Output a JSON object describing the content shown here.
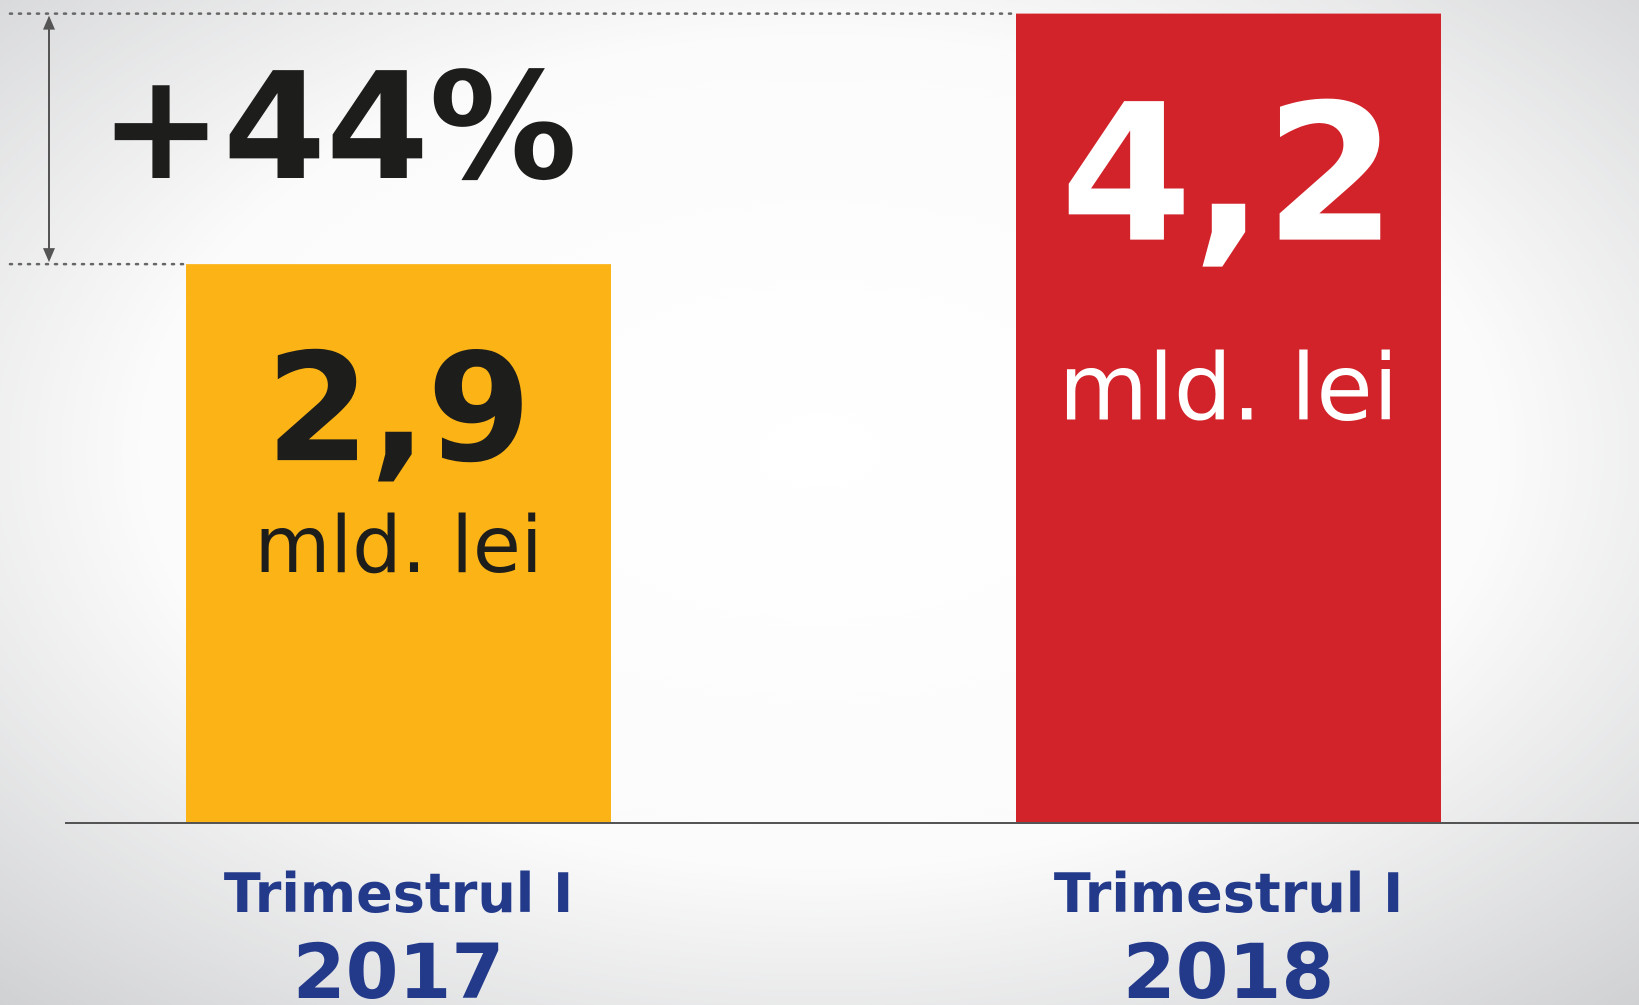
{
  "chart_data": {
    "type": "bar",
    "annotation": "+44%",
    "quarter_labels": [
      "Trimestrul I",
      "Trimestrul I"
    ],
    "categories": [
      "2017",
      "2018"
    ],
    "values": [
      2.9,
      4.2
    ],
    "value_labels": [
      "2,9",
      "4,2"
    ],
    "value_units": [
      "mld. lei",
      "mld. lei"
    ],
    "colors": [
      "#fbb316",
      "#d2232a"
    ],
    "label_colors": [
      "#1d1d1b",
      "#ffffff"
    ]
  }
}
